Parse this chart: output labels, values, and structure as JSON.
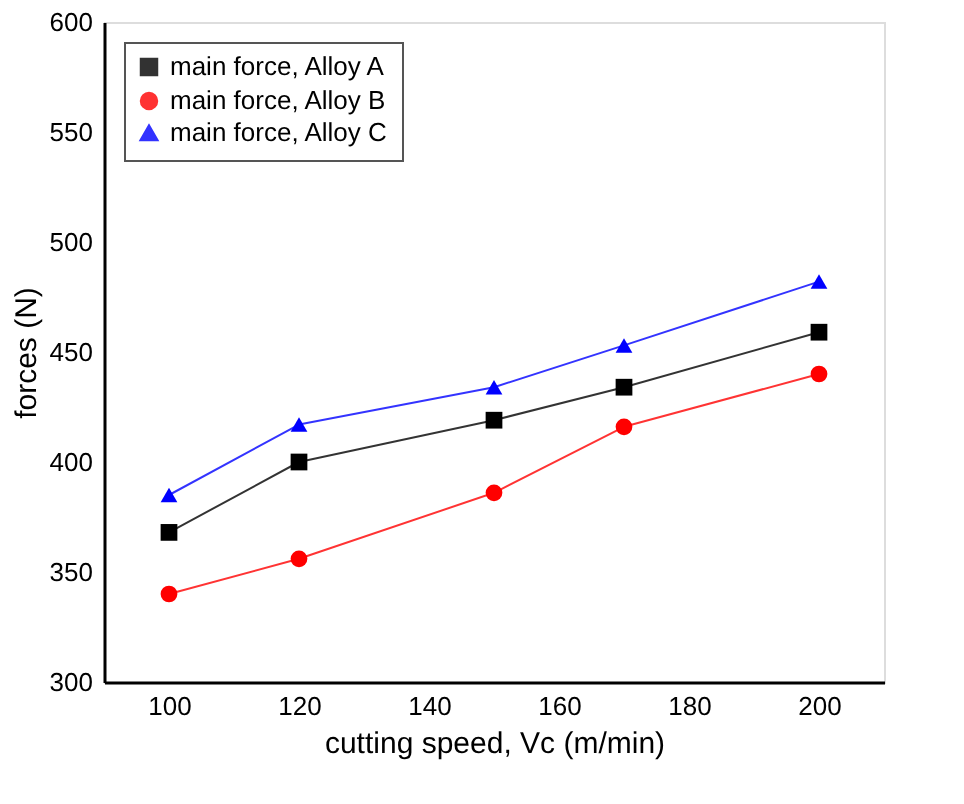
{
  "chart_data": {
    "type": "line",
    "xlabel": "cutting speed, Vc (m/min)",
    "ylabel": "forces (N)",
    "x": [
      100,
      120,
      150,
      170,
      200
    ],
    "series": [
      {
        "name": "main force, Alloy A",
        "color": "#000000",
        "marker": "square",
        "values": [
          368,
          400,
          419,
          434,
          459
        ]
      },
      {
        "name": "main force, Alloy B",
        "color": "#ff0000",
        "marker": "circle",
        "values": [
          340,
          356,
          386,
          416,
          440
        ]
      },
      {
        "name": "main force, Alloy C",
        "color": "#0000ff",
        "marker": "triangle",
        "values": [
          385,
          417,
          434,
          453,
          482
        ]
      }
    ],
    "xlim": [
      90,
      210
    ],
    "xticks": [
      100,
      120,
      140,
      160,
      180,
      200
    ],
    "ylim": [
      300,
      600
    ],
    "yticks": [
      300,
      350,
      400,
      450,
      500,
      550,
      600
    ],
    "grid": false,
    "legend": "top left",
    "line_style": "solid"
  }
}
